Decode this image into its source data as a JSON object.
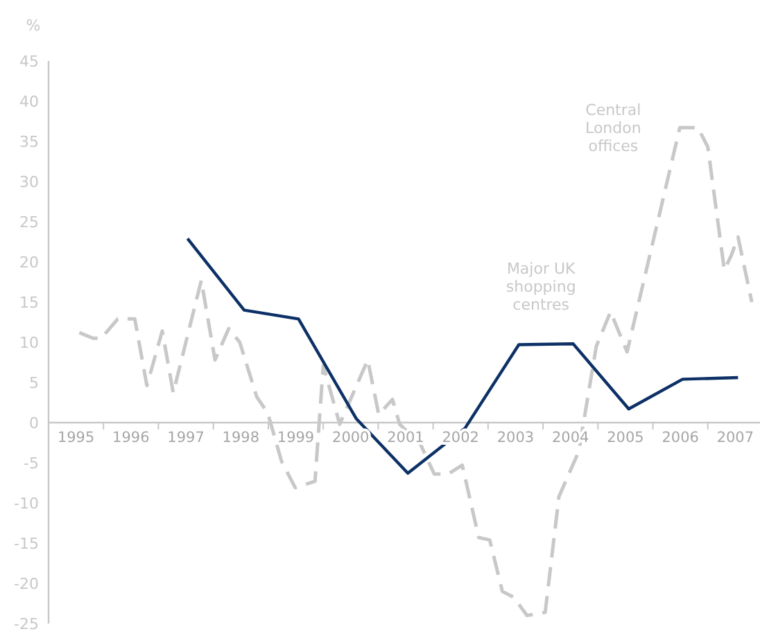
{
  "chart_data": {
    "type": "line",
    "ylabel": "%",
    "xlim": [
      1995,
      2008
    ],
    "xticks": [
      {
        "value": 1995.5,
        "label": "1995"
      },
      {
        "value": 1996,
        "label": null
      },
      {
        "value": 1996.5,
        "label": "1996"
      },
      {
        "value": 1997,
        "label": null
      },
      {
        "value": 1997.5,
        "label": "1997"
      },
      {
        "value": 1998,
        "label": null
      },
      {
        "value": 1998.5,
        "label": "1998"
      },
      {
        "value": 1999,
        "label": null
      },
      {
        "value": 1999.5,
        "label": "1999"
      },
      {
        "value": 2000,
        "label": null
      },
      {
        "value": 2000.5,
        "label": "2000"
      },
      {
        "value": 2001,
        "label": null
      },
      {
        "value": 2001.5,
        "label": "2001"
      },
      {
        "value": 2002,
        "label": null
      },
      {
        "value": 2002.5,
        "label": "2002"
      },
      {
        "value": 2003,
        "label": null
      },
      {
        "value": 2003.5,
        "label": "2003"
      },
      {
        "value": 2004,
        "label": null
      },
      {
        "value": 2004.5,
        "label": "2004"
      },
      {
        "value": 2005,
        "label": null
      },
      {
        "value": 2005.5,
        "label": "2005"
      },
      {
        "value": 2006,
        "label": null
      },
      {
        "value": 2006.5,
        "label": "2006"
      },
      {
        "value": 2007,
        "label": null
      },
      {
        "value": 2007.5,
        "label": "2007"
      }
    ],
    "ylim": [
      -25,
      45
    ],
    "yticks": [
      -25,
      -20,
      -15,
      -10,
      -5,
      0,
      5,
      10,
      15,
      20,
      25,
      30,
      35,
      40,
      45
    ],
    "grid": false,
    "series": [
      {
        "name": "Central London offices",
        "color": "#c8c8c8",
        "line_style": "dashed",
        "x": [
          1995.56,
          1995.81,
          1995.96,
          1996.26,
          1996.57,
          1996.79,
          1997.07,
          1997.27,
          1997.78,
          1998.03,
          1998.28,
          1998.48,
          1998.79,
          1998.99,
          1999.24,
          1999.49,
          1999.85,
          2000.0,
          2000.3,
          2000.81,
          2001.01,
          2001.26,
          2001.39,
          2001.77,
          2002.02,
          2002.27,
          2002.53,
          2002.83,
          2003.03,
          2003.26,
          2003.46,
          2003.71,
          2004.04,
          2004.29,
          2004.65,
          2004.97,
          2005.23,
          2005.53,
          2006.49,
          2006.82,
          2007.0,
          2007.3,
          2007.42,
          2007.55,
          2007.8
        ],
        "values": [
          11.2,
          10.5,
          10.5,
          12.9,
          12.9,
          4.6,
          11.4,
          3.7,
          17.7,
          7.8,
          11.7,
          10,
          3.2,
          1.2,
          -4.8,
          -8.1,
          -7.3,
          7.1,
          -0.2,
          7.8,
          1.0,
          2.9,
          -0.2,
          -2.7,
          -6.4,
          -6.4,
          -5.3,
          -14.3,
          -14.6,
          -21,
          -21.7,
          -24,
          -23.6,
          -9.2,
          -3.6,
          9.5,
          13.8,
          8.8,
          36.7,
          36.7,
          34.3,
          19,
          20.7,
          23.1,
          15
        ]
      },
      {
        "name": "Major UK shopping centres",
        "color": "#0d3166",
        "line_style": "solid",
        "x": [
          1997.53,
          1998.56,
          1999.55,
          2000.6,
          2001.54,
          2002.58,
          2003.56,
          2004.55,
          2005.56,
          2006.54,
          2007.55
        ],
        "values": [
          22.9,
          14,
          12.9,
          0.5,
          -6.3,
          -0.7,
          9.7,
          9.8,
          1.7,
          5.4,
          5.6
        ]
      }
    ]
  }
}
